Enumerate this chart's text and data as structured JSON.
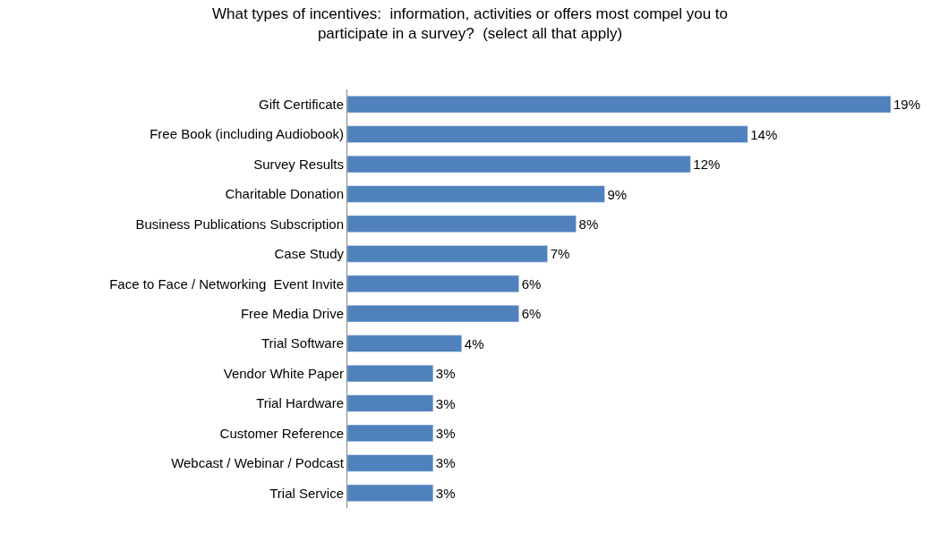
{
  "chart_data": {
    "type": "bar",
    "orientation": "horizontal",
    "title": "What types of incentives:  information, activities or offers most compel you to\nparticipate in a survey?  (select all that apply)",
    "categories": [
      "Gift Certificate",
      "Free Book (including Audiobook)",
      "Survey Results",
      "Charitable Donation",
      "Business Publications Subscription",
      "Case Study",
      "Face to Face / Networking  Event Invite",
      "Free Media Drive",
      "Trial Software",
      "Vendor White Paper",
      "Trial Hardware",
      "Customer Reference",
      "Webcast / Webinar / Podcast",
      "Trial Service"
    ],
    "values": [
      19,
      14,
      12,
      9,
      8,
      7,
      6,
      6,
      4,
      3,
      3,
      3,
      3,
      3
    ],
    "value_labels": [
      "19%",
      "14%",
      "12%",
      "9%",
      "8%",
      "7%",
      "6%",
      "6%",
      "4%",
      "3%",
      "3%",
      "3%",
      "3%",
      "3%"
    ],
    "color": "#4f81bd"
  }
}
